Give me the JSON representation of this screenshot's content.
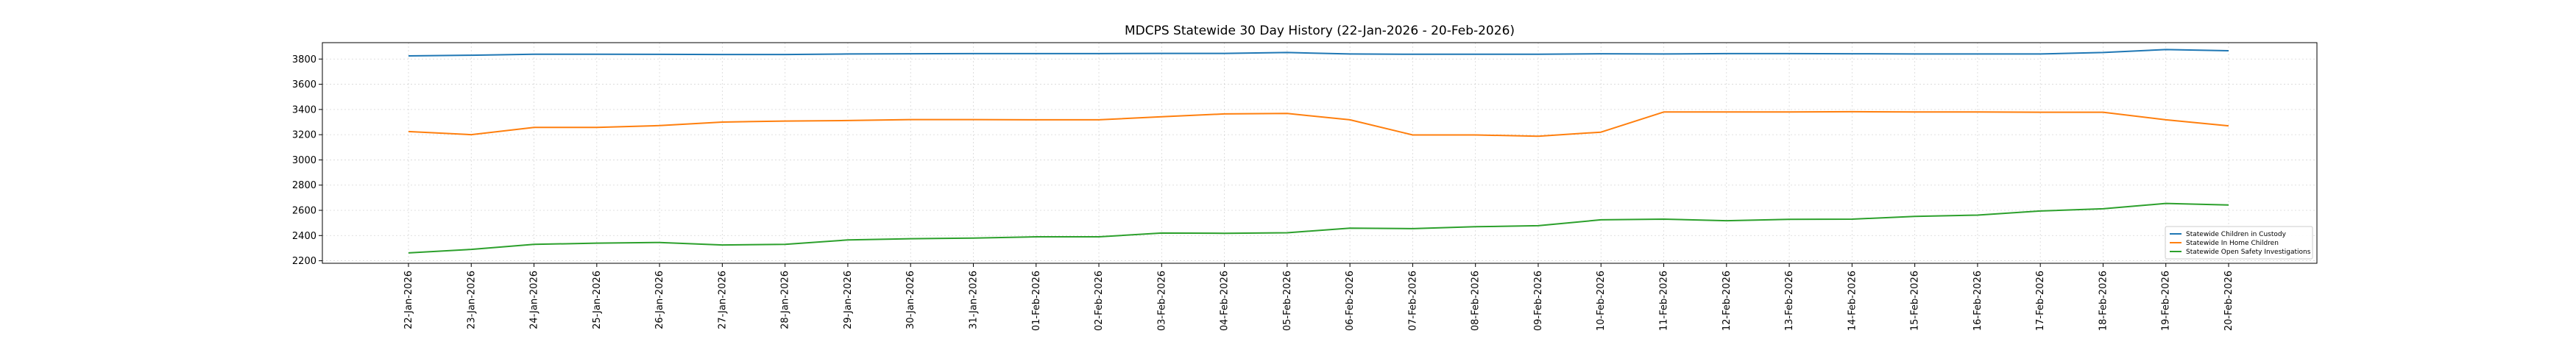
{
  "chart_data": {
    "type": "line",
    "title": "MDCPS Statewide 30 Day History (22-Jan-2026 - 20-Feb-2026)",
    "xlabel": "",
    "ylabel": "",
    "ylim": [
      2180,
      3930
    ],
    "yticks": [
      2200,
      2400,
      2600,
      2800,
      3000,
      3200,
      3400,
      3600,
      3800
    ],
    "grid": true,
    "legend_position": "lower-right",
    "categories": [
      "22-Jan-2026",
      "23-Jan-2026",
      "24-Jan-2026",
      "25-Jan-2026",
      "26-Jan-2026",
      "27-Jan-2026",
      "28-Jan-2026",
      "29-Jan-2026",
      "30-Jan-2026",
      "31-Jan-2026",
      "01-Feb-2026",
      "02-Feb-2026",
      "03-Feb-2026",
      "04-Feb-2026",
      "05-Feb-2026",
      "06-Feb-2026",
      "07-Feb-2026",
      "08-Feb-2026",
      "09-Feb-2026",
      "10-Feb-2026",
      "11-Feb-2026",
      "12-Feb-2026",
      "13-Feb-2026",
      "14-Feb-2026",
      "15-Feb-2026",
      "16-Feb-2026",
      "17-Feb-2026",
      "18-Feb-2026",
      "19-Feb-2026",
      "20-Feb-2026"
    ],
    "series": [
      {
        "name": "Statewide Children in Custody",
        "color": "#1f77b4",
        "values": [
          3825,
          3830,
          3838,
          3838,
          3837,
          3836,
          3836,
          3840,
          3842,
          3843,
          3843,
          3843,
          3845,
          3845,
          3852,
          3840,
          3838,
          3838,
          3838,
          3842,
          3840,
          3843,
          3843,
          3842,
          3840,
          3840,
          3840,
          3852,
          3875,
          3866
        ]
      },
      {
        "name": "Statewide In Home Children",
        "color": "#ff7f0e",
        "values": [
          3225,
          3200,
          3258,
          3258,
          3272,
          3300,
          3308,
          3312,
          3320,
          3320,
          3318,
          3318,
          3342,
          3365,
          3368,
          3318,
          3198,
          3198,
          3188,
          3220,
          3380,
          3380,
          3380,
          3382,
          3380,
          3380,
          3378,
          3378,
          3318,
          3270
        ]
      },
      {
        "name": "Statewide Open Safety Investigations",
        "color": "#2ca02c",
        "values": [
          2262,
          2290,
          2330,
          2340,
          2345,
          2325,
          2330,
          2365,
          2375,
          2380,
          2390,
          2390,
          2420,
          2418,
          2422,
          2458,
          2455,
          2470,
          2478,
          2525,
          2530,
          2518,
          2528,
          2530,
          2552,
          2562,
          2595,
          2612,
          2655,
          2642
        ]
      }
    ]
  }
}
